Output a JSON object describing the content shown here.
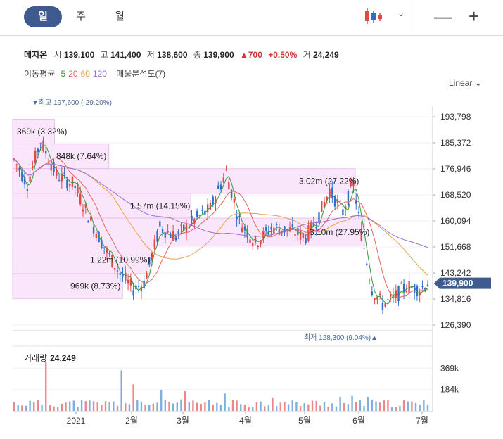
{
  "tabs": {
    "day": "일",
    "week": "주",
    "month": "월"
  },
  "controls": {
    "chart_type_icon": "candlestick-icon",
    "zoom_out": "—",
    "zoom_in": "+"
  },
  "stock": {
    "name": "메지온",
    "open_label": "시",
    "open": "139,100",
    "high_label": "고",
    "high": "141,400",
    "low_label": "저",
    "low": "138,600",
    "close_label": "종",
    "close": "139,900",
    "change": "▲700",
    "change_pct": "+0.50%",
    "volume_label": "거",
    "volume": "24,249"
  },
  "indicators": {
    "ma_label": "이동평균",
    "ma": [
      {
        "period": "5",
        "color": "#3a9a3a"
      },
      {
        "period": "20",
        "color": "#e0675e"
      },
      {
        "period": "60",
        "color": "#e8a24a"
      },
      {
        "period": "120",
        "color": "#9a6fd0"
      }
    ],
    "analysis_label": "매물분석도(7)"
  },
  "scale_label": "Linear",
  "colors": {
    "up": "#e04848",
    "down": "#2e6fcc",
    "band": "#f9e6fa",
    "band_border": "#e6b8ea",
    "price_tag": "#3f5a8e"
  },
  "chart_data": {
    "type": "candlestick",
    "y_ticks": [
      "193,798",
      "185,372",
      "176,946",
      "168,520",
      "160,094",
      "151,668",
      "143,242",
      "134,816",
      "126,390"
    ],
    "x_ticks": [
      "2021",
      "2월",
      "3월",
      "4월",
      "5월",
      "6월",
      "7월"
    ],
    "ylim": [
      126390,
      193798
    ],
    "current_price": "139,900",
    "max_label": "▼최고 197,600 (-29.20%)",
    "min_label": "최저 128,300 (9.04%)▲",
    "volume_profile": [
      {
        "label": "369k (3.32%)",
        "low": 185000,
        "high": 193000,
        "volume": 369
      },
      {
        "label": "848k (7.64%)",
        "low": 177000,
        "high": 185000,
        "volume": 848
      },
      {
        "label": "3.02m (27.22%)",
        "low": 169000,
        "high": 177000,
        "volume": 3020
      },
      {
        "label": "1.57m (14.15%)",
        "low": 161000,
        "high": 169000,
        "volume": 1570
      },
      {
        "label": "3.10m (27.95%)",
        "low": 152000,
        "high": 161000,
        "volume": 3100
      },
      {
        "label": "1.22m (10.99%)",
        "low": 143000,
        "high": 152000,
        "volume": 1220
      },
      {
        "label": "969k (8.73%)",
        "low": 135000,
        "high": 143000,
        "volume": 969
      }
    ],
    "volume_title": "거래량",
    "volume_value": "24,249",
    "volume_ticks": [
      "369k",
      "184k"
    ],
    "volume_ylim": [
      0,
      480
    ]
  }
}
